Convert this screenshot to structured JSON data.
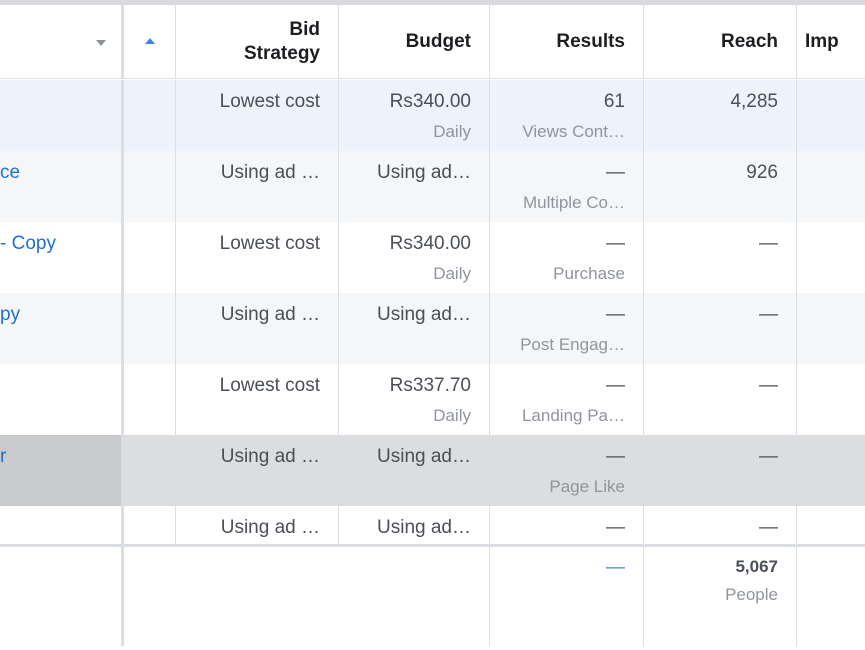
{
  "columns": {
    "bid_strategy_line1": "Bid",
    "bid_strategy_line2": "Strategy",
    "budget": "Budget",
    "results": "Results",
    "reach": "Reach",
    "impressions_cut": "Imp"
  },
  "rows": [
    {
      "name_cut": "",
      "bid": "Lowest cost",
      "budget": "Rs340.00",
      "budget_sub": "Daily",
      "results": "61",
      "results_sub": "Views Cont…",
      "reach": "4,285"
    },
    {
      "name_cut": "ce",
      "bid": "Using ad …",
      "budget": "Using ad…",
      "budget_sub": "",
      "results": "—",
      "results_sub": "Multiple Co…",
      "reach": "926"
    },
    {
      "name_cut": "- Copy",
      "bid": "Lowest cost",
      "budget": "Rs340.00",
      "budget_sub": "Daily",
      "results": "—",
      "results_sub": "Purchase",
      "reach": "—"
    },
    {
      "name_cut": "py",
      "bid": "Using ad …",
      "budget": "Using ad…",
      "budget_sub": "",
      "results": "—",
      "results_sub": "Post Engag…",
      "reach": "—"
    },
    {
      "name_cut": "",
      "bid": "Lowest cost",
      "budget": "Rs337.70",
      "budget_sub": "Daily",
      "results": "—",
      "results_sub": "Landing Pa…",
      "reach": "—"
    },
    {
      "name_cut": "r",
      "bid": "Using ad …",
      "budget": "Using ad…",
      "budget_sub": "",
      "results": "—",
      "results_sub": "Page Like",
      "reach": "—"
    },
    {
      "name_cut": "",
      "bid": "Using ad …",
      "budget": "Using ad…",
      "budget_sub": "",
      "results": "—",
      "results_sub": "",
      "reach": "—"
    }
  ],
  "totals": {
    "results": "—",
    "reach": "5,067",
    "reach_sub": "People"
  },
  "colors": {
    "row_selected": "#edf2fb",
    "row_alt": "#f5f6f7",
    "row_hover": "#dcdddf",
    "link": "#1f6fd4",
    "sort_blue": "#4080ff"
  }
}
